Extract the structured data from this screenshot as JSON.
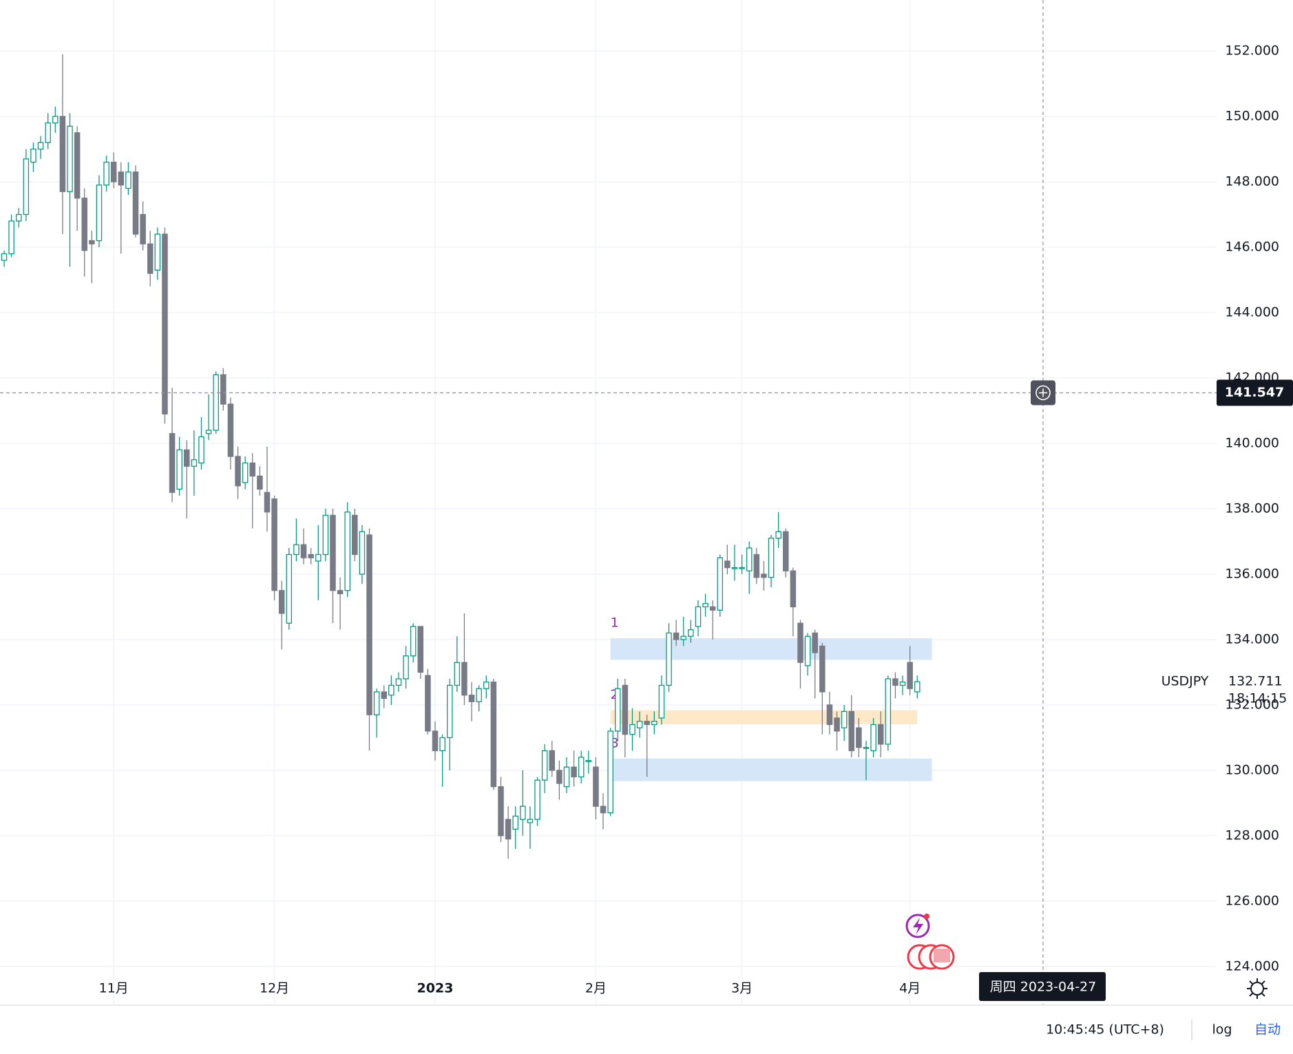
{
  "chart_data": {
    "type": "candlestick",
    "symbol": "USDJPY",
    "countdown": "18:14:15",
    "up_color": "#089981",
    "down_color": "#787b86",
    "grid": true,
    "log_scale": false,
    "ylim": [
      122.84,
      153.56
    ],
    "yticks": [
      {
        "value": 124,
        "label": "124.000"
      },
      {
        "value": 126,
        "label": "126.000"
      },
      {
        "value": 128,
        "label": "128.000"
      },
      {
        "value": 130,
        "label": "130.000"
      },
      {
        "value": 132,
        "label": "132.000"
      },
      {
        "value": 134,
        "label": "134.000"
      },
      {
        "value": 136,
        "label": "136.000"
      },
      {
        "value": 138,
        "label": "138.000"
      },
      {
        "value": 140,
        "label": "140.000"
      },
      {
        "value": 142,
        "label": "142.000"
      },
      {
        "value": 144,
        "label": "144.000"
      },
      {
        "value": 146,
        "label": "146.000"
      },
      {
        "value": 148,
        "label": "148.000"
      },
      {
        "value": 150,
        "label": "150.000"
      },
      {
        "value": 152,
        "label": "152.000"
      }
    ],
    "categories": [
      null,
      null,
      null,
      null,
      null,
      null,
      null,
      null,
      null,
      null,
      null,
      null,
      null,
      null,
      null,
      "11月",
      null,
      null,
      null,
      null,
      null,
      null,
      null,
      null,
      null,
      null,
      null,
      null,
      null,
      null,
      null,
      null,
      null,
      null,
      null,
      null,
      null,
      "12月",
      null,
      null,
      null,
      null,
      null,
      null,
      null,
      null,
      null,
      null,
      null,
      null,
      null,
      null,
      null,
      null,
      null,
      null,
      null,
      null,
      null,
      "2023",
      null,
      null,
      null,
      null,
      null,
      null,
      null,
      null,
      null,
      null,
      null,
      null,
      null,
      null,
      null,
      null,
      null,
      null,
      null,
      null,
      null,
      "2月",
      null,
      null,
      null,
      null,
      null,
      null,
      null,
      null,
      null,
      null,
      null,
      null,
      null,
      null,
      null,
      null,
      null,
      null,
      null,
      "3月",
      null,
      null,
      null,
      null,
      null,
      null,
      null,
      null,
      null,
      null,
      null,
      null,
      null,
      null,
      null,
      null,
      null,
      null,
      null,
      null,
      null,
      null,
      "4月",
      null
    ],
    "open": [
      145.6,
      145.8,
      146.8,
      147.0,
      148.6,
      149.0,
      149.2,
      149.8,
      150.0,
      147.7,
      149.5,
      147.5,
      146.2,
      146.2,
      147.9,
      148.6,
      148.3,
      147.8,
      148.3,
      147.0,
      146.1,
      145.3,
      146.4,
      140.3,
      138.6,
      139.8,
      139.3,
      139.4,
      140.3,
      140.4,
      142.1,
      141.2,
      139.6,
      138.8,
      139.4,
      139.0,
      138.5,
      138.3,
      135.5,
      134.5,
      136.6,
      136.9,
      136.6,
      136.4,
      136.6,
      137.8,
      135.5,
      135.5,
      137.8,
      136.0,
      137.2,
      131.7,
      132.4,
      132.3,
      132.6,
      132.8,
      133.5,
      134.4,
      132.9,
      131.2,
      130.6,
      131.0,
      132.6,
      133.3,
      132.3,
      132.1,
      132.5,
      132.7,
      129.5,
      128.5,
      128.2,
      128.5,
      128.4,
      128.5,
      129.7,
      130.6,
      130.0,
      129.5,
      130.1,
      129.8,
      130.3,
      130.1,
      128.9,
      128.7,
      131.2,
      132.6,
      131.1,
      131.3,
      131.5,
      131.4,
      131.6,
      132.6,
      134.2,
      134.0,
      134.1,
      134.4,
      135.0,
      135.0,
      134.9,
      136.4,
      136.2,
      136.2,
      136.1,
      136.6,
      136.0,
      135.9,
      137.1,
      137.3,
      136.1,
      134.5,
      133.2,
      134.2,
      133.8,
      132.0,
      131.6,
      131.3,
      131.8,
      131.3,
      130.7,
      130.6,
      131.4,
      130.8,
      132.8,
      132.6,
      133.3,
      132.4
    ],
    "high": [
      145.9,
      147.0,
      147.2,
      149.0,
      149.2,
      149.4,
      150.1,
      150.3,
      151.9,
      150.1,
      149.7,
      147.8,
      146.5,
      148.2,
      148.8,
      148.9,
      148.6,
      148.6,
      148.5,
      147.4,
      146.5,
      146.6,
      146.6,
      141.7,
      140.2,
      140.1,
      140.4,
      140.8,
      141.5,
      142.2,
      142.3,
      141.4,
      139.9,
      139.6,
      139.7,
      139.3,
      139.9,
      138.4,
      135.8,
      136.8,
      137.7,
      137.4,
      136.8,
      137.5,
      138.0,
      138.0,
      135.9,
      138.2,
      138.0,
      137.5,
      137.4,
      132.5,
      132.6,
      132.9,
      133.0,
      133.8,
      134.5,
      134.4,
      133.1,
      131.5,
      131.1,
      132.8,
      134.1,
      134.8,
      132.7,
      132.6,
      132.9,
      132.8,
      129.8,
      128.9,
      128.9,
      130.0,
      128.9,
      129.8,
      130.8,
      130.9,
      130.3,
      130.4,
      130.6,
      130.6,
      130.6,
      130.4,
      129.3,
      131.3,
      132.8,
      132.8,
      131.9,
      131.8,
      131.7,
      131.8,
      132.9,
      134.5,
      134.6,
      134.7,
      134.6,
      135.2,
      135.4,
      135.2,
      136.6,
      136.9,
      136.9,
      136.6,
      137.0,
      136.8,
      136.4,
      137.2,
      137.9,
      137.4,
      136.2,
      134.6,
      134.2,
      134.3,
      133.9,
      132.4,
      131.8,
      132.0,
      132.3,
      131.6,
      130.9,
      131.6,
      131.8,
      132.9,
      133.0,
      132.9,
      133.8,
      132.9
    ],
    "low": [
      145.4,
      145.7,
      146.6,
      146.8,
      148.3,
      148.7,
      149.0,
      149.5,
      146.4,
      145.4,
      146.5,
      145.1,
      144.9,
      146.0,
      147.7,
      147.8,
      145.8,
      147.6,
      146.3,
      145.9,
      144.8,
      145.0,
      140.6,
      138.2,
      138.4,
      137.7,
      138.4,
      139.2,
      140.1,
      140.3,
      141.0,
      139.2,
      138.3,
      138.6,
      137.4,
      138.4,
      137.3,
      135.2,
      133.7,
      134.3,
      136.4,
      136.3,
      136.3,
      135.2,
      136.4,
      134.5,
      134.3,
      135.3,
      136.4,
      135.7,
      130.6,
      131.0,
      131.9,
      132.0,
      132.4,
      132.5,
      133.3,
      132.8,
      131.1,
      130.3,
      129.5,
      130.0,
      132.4,
      132.0,
      131.5,
      131.8,
      132.2,
      129.4,
      127.8,
      127.3,
      127.6,
      128.0,
      127.6,
      128.3,
      129.3,
      129.8,
      129.1,
      129.3,
      129.5,
      129.6,
      129.9,
      128.5,
      128.2,
      128.6,
      130.9,
      130.4,
      130.6,
      131.0,
      129.8,
      131.1,
      131.4,
      132.4,
      133.8,
      133.8,
      133.9,
      134.1,
      134.7,
      134.0,
      134.7,
      136.0,
      135.8,
      136.0,
      135.4,
      135.7,
      135.5,
      135.6,
      136.8,
      135.9,
      134.1,
      132.5,
      132.9,
      132.2,
      131.1,
      131.1,
      130.6,
      130.9,
      130.4,
      130.4,
      129.7,
      130.4,
      130.4,
      130.6,
      132.2,
      132.3,
      132.3,
      132.2
    ],
    "close": [
      145.8,
      146.8,
      147.0,
      148.7,
      149.0,
      149.2,
      149.8,
      150.0,
      147.7,
      149.7,
      147.5,
      145.9,
      146.1,
      147.9,
      148.6,
      148.0,
      147.9,
      148.3,
      146.4,
      146.1,
      145.2,
      146.4,
      140.9,
      138.5,
      139.8,
      139.3,
      139.5,
      140.2,
      140.4,
      142.1,
      141.2,
      139.6,
      138.7,
      139.4,
      139.0,
      138.6,
      137.9,
      135.5,
      134.8,
      136.6,
      136.9,
      136.5,
      136.5,
      136.6,
      137.8,
      135.5,
      135.4,
      137.9,
      136.6,
      137.3,
      131.7,
      132.4,
      132.2,
      132.6,
      132.8,
      133.5,
      134.4,
      133.0,
      131.2,
      130.6,
      131.0,
      132.6,
      133.3,
      132.3,
      132.1,
      132.5,
      132.7,
      129.5,
      128.0,
      127.9,
      128.6,
      128.9,
      128.5,
      129.7,
      130.6,
      130.0,
      129.6,
      130.1,
      129.8,
      130.4,
      130.3,
      128.9,
      128.7,
      131.2,
      132.5,
      131.1,
      131.4,
      131.5,
      131.4,
      131.5,
      132.6,
      134.2,
      134.0,
      134.1,
      134.3,
      135.0,
      135.1,
      134.9,
      136.5,
      136.2,
      136.2,
      136.2,
      136.8,
      135.9,
      135.9,
      137.1,
      137.3,
      136.1,
      135.0,
      133.3,
      134.1,
      133.6,
      132.4,
      131.4,
      131.2,
      131.8,
      130.6,
      130.7,
      130.7,
      131.4,
      130.8,
      132.8,
      132.6,
      132.7,
      132.5,
      132.711
    ],
    "zones": [
      {
        "label": "1",
        "low": 133.38,
        "high": 134.04,
        "start": 83,
        "end": 127,
        "color": "#d6e6f9"
      },
      {
        "label": "2",
        "low": 131.41,
        "high": 131.84,
        "start": 83,
        "end": 125,
        "color": "#fde8c8"
      },
      {
        "label": "3",
        "low": 129.67,
        "high": 130.36,
        "start": 83,
        "end": 127,
        "color": "#d6e6f9"
      }
    ],
    "zone_label_color": "#9c27b0",
    "crosshair": {
      "price": 141.547,
      "date": "周四 2023-04-27"
    }
  },
  "toolbar": {
    "clock": "10:45:45 (UTC+8)",
    "log_button": "log",
    "auto_button": "自动"
  }
}
